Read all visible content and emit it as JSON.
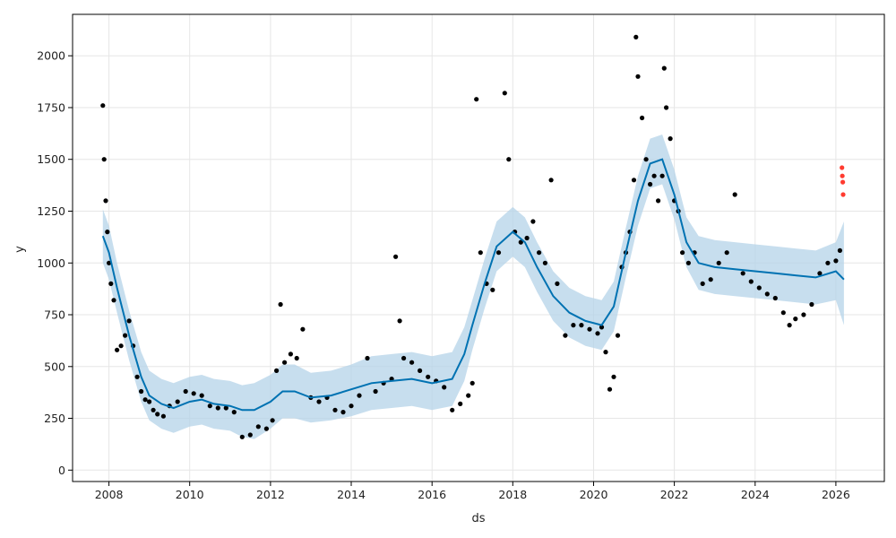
{
  "chart_data": {
    "type": "line",
    "title": "",
    "xlabel": "ds",
    "ylabel": "y",
    "xlim": [
      2007.1,
      2027.2
    ],
    "ylim": [
      -55,
      2200
    ],
    "grid": true,
    "legend": "none",
    "x_ticks": [
      2008,
      2010,
      2012,
      2014,
      2016,
      2018,
      2020,
      2022,
      2024,
      2026
    ],
    "x_tick_labels": [
      "2008",
      "2010",
      "2012",
      "2014",
      "2016",
      "2018",
      "2020",
      "2022",
      "2024",
      "2026"
    ],
    "y_ticks": [
      0,
      250,
      500,
      750,
      1000,
      1250,
      1500,
      1750,
      2000
    ],
    "y_tick_labels": [
      "0",
      "250",
      "500",
      "750",
      "1000",
      "1250",
      "1500",
      "1750",
      "2000"
    ],
    "colors": {
      "forecast_line": "#0072b2",
      "uncertainty_band": "#b4d3e8",
      "observed_points": "#000000",
      "latest_points": "#ff3b30",
      "grid": "#e6e6e6"
    },
    "forecast": {
      "x": [
        2007.85,
        2008.0,
        2008.2,
        2008.5,
        2008.8,
        2009.0,
        2009.3,
        2009.6,
        2010.0,
        2010.3,
        2010.6,
        2011.0,
        2011.3,
        2011.6,
        2012.0,
        2012.3,
        2012.6,
        2013.0,
        2013.5,
        2014.0,
        2014.5,
        2015.0,
        2015.5,
        2016.0,
        2016.5,
        2016.8,
        2017.0,
        2017.3,
        2017.6,
        2018.0,
        2018.3,
        2018.6,
        2019.0,
        2019.4,
        2019.8,
        2020.2,
        2020.5,
        2020.8,
        2021.1,
        2021.4,
        2021.7,
        2022.0,
        2022.3,
        2022.6,
        2023.0,
        2023.5,
        2024.0,
        2024.5,
        2025.0,
        2025.5,
        2026.0,
        2026.2
      ],
      "y": [
        1130,
        1050,
        880,
        650,
        450,
        360,
        320,
        300,
        330,
        340,
        320,
        310,
        290,
        290,
        330,
        380,
        380,
        350,
        360,
        390,
        420,
        430,
        440,
        420,
        440,
        560,
        700,
        900,
        1080,
        1150,
        1100,
        980,
        840,
        760,
        720,
        700,
        790,
        1050,
        1300,
        1480,
        1500,
        1330,
        1100,
        1000,
        980,
        970,
        960,
        950,
        940,
        930,
        960,
        920
      ],
      "lower": [
        1000,
        920,
        760,
        530,
        330,
        240,
        200,
        180,
        210,
        220,
        200,
        190,
        160,
        150,
        200,
        250,
        250,
        230,
        240,
        260,
        290,
        300,
        310,
        290,
        310,
        430,
        580,
        780,
        960,
        1030,
        980,
        860,
        720,
        640,
        600,
        580,
        670,
        930,
        1180,
        1360,
        1380,
        1210,
        980,
        870,
        850,
        840,
        830,
        820,
        810,
        800,
        820,
        700
      ],
      "upper": [
        1260,
        1180,
        1000,
        770,
        570,
        480,
        440,
        420,
        450,
        460,
        440,
        430,
        410,
        420,
        460,
        510,
        510,
        470,
        480,
        510,
        550,
        560,
        570,
        550,
        570,
        690,
        820,
        1020,
        1200,
        1270,
        1220,
        1100,
        960,
        880,
        840,
        820,
        910,
        1170,
        1420,
        1600,
        1620,
        1450,
        1220,
        1130,
        1110,
        1100,
        1090,
        1080,
        1070,
        1060,
        1100,
        1200
      ]
    },
    "observed": {
      "x": [
        2007.85,
        2007.88,
        2007.92,
        2007.96,
        2008.0,
        2008.05,
        2008.12,
        2008.2,
        2008.3,
        2008.4,
        2008.5,
        2008.6,
        2008.7,
        2008.8,
        2008.9,
        2009.0,
        2009.1,
        2009.2,
        2009.35,
        2009.5,
        2009.7,
        2009.9,
        2010.1,
        2010.3,
        2010.5,
        2010.7,
        2010.9,
        2011.1,
        2011.3,
        2011.5,
        2011.7,
        2011.9,
        2012.05,
        2012.15,
        2012.25,
        2012.35,
        2012.5,
        2012.65,
        2012.8,
        2013.0,
        2013.2,
        2013.4,
        2013.6,
        2013.8,
        2014.0,
        2014.2,
        2014.4,
        2014.6,
        2014.8,
        2015.0,
        2015.1,
        2015.2,
        2015.3,
        2015.5,
        2015.7,
        2015.9,
        2016.1,
        2016.3,
        2016.5,
        2016.7,
        2016.9,
        2017.0,
        2017.1,
        2017.2,
        2017.35,
        2017.5,
        2017.65,
        2017.8,
        2017.9,
        2018.05,
        2018.2,
        2018.35,
        2018.5,
        2018.65,
        2018.8,
        2018.95,
        2019.1,
        2019.3,
        2019.5,
        2019.7,
        2019.9,
        2020.1,
        2020.2,
        2020.3,
        2020.4,
        2020.5,
        2020.6,
        2020.7,
        2020.8,
        2020.9,
        2021.0,
        2021.05,
        2021.1,
        2021.2,
        2021.3,
        2021.4,
        2021.5,
        2021.6,
        2021.7,
        2021.75,
        2021.8,
        2021.9,
        2022.0,
        2022.1,
        2022.2,
        2022.35,
        2022.5,
        2022.7,
        2022.9,
        2023.1,
        2023.3,
        2023.5,
        2023.7,
        2023.9,
        2024.1,
        2024.3,
        2024.5,
        2024.7,
        2024.85,
        2025.0,
        2025.2,
        2025.4,
        2025.6,
        2025.8,
        2026.0,
        2026.1
      ],
      "y": [
        1760,
        1500,
        1300,
        1150,
        1000,
        900,
        820,
        580,
        600,
        650,
        720,
        600,
        450,
        380,
        340,
        330,
        290,
        270,
        260,
        310,
        330,
        380,
        370,
        360,
        310,
        300,
        300,
        280,
        160,
        170,
        210,
        200,
        240,
        480,
        800,
        520,
        560,
        540,
        680,
        350,
        330,
        350,
        290,
        280,
        310,
        360,
        540,
        380,
        420,
        440,
        1030,
        720,
        540,
        520,
        480,
        450,
        430,
        400,
        290,
        320,
        360,
        420,
        1790,
        1050,
        900,
        870,
        1050,
        1820,
        1500,
        1150,
        1100,
        1120,
        1200,
        1050,
        1000,
        1400,
        900,
        650,
        700,
        700,
        680,
        660,
        690,
        570,
        390,
        450,
        650,
        980,
        1050,
        1150,
        1400,
        2090,
        1900,
        1700,
        1500,
        1380,
        1420,
        1300,
        1420,
        1940,
        1750,
        1600,
        1300,
        1250,
        1050,
        1000,
        1050,
        900,
        920,
        1000,
        1050,
        1330,
        950,
        910,
        880,
        850,
        830,
        760,
        700,
        730,
        750,
        800,
        950,
        1000,
        1010,
        1060
      ],
      "latest_x": [
        2026.15,
        2026.16,
        2026.17,
        2026.18
      ],
      "latest_y": [
        1460,
        1420,
        1390,
        1330
      ]
    }
  }
}
